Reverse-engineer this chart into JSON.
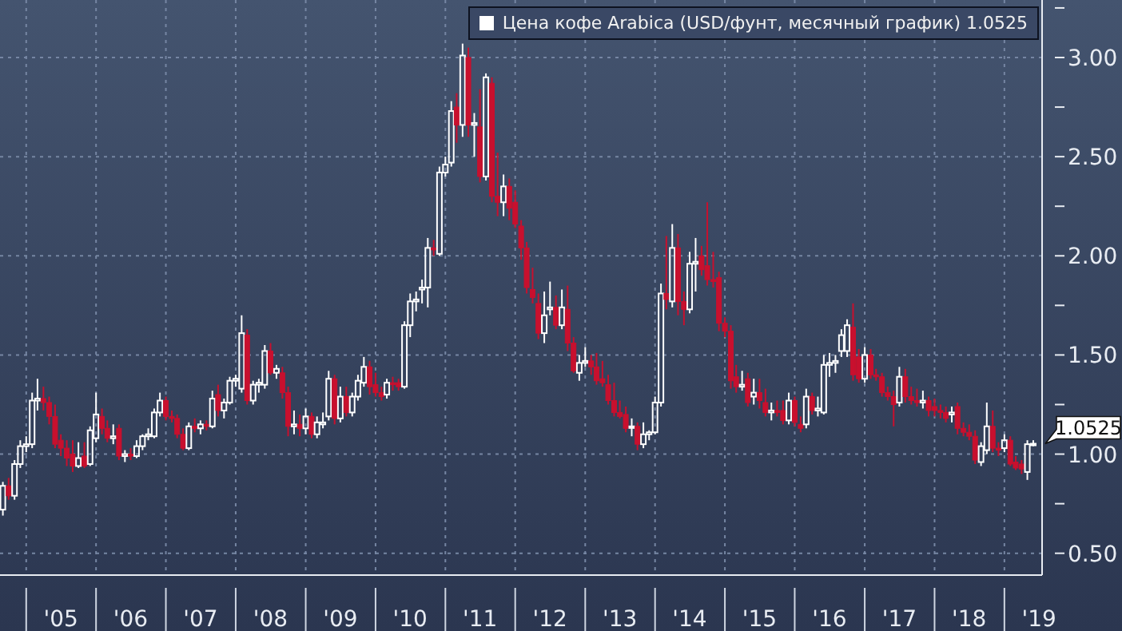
{
  "chart_data": {
    "type": "candlestick",
    "x": [
      "2004-09",
      "2004-10",
      "2004-11",
      "2004-12",
      "2005-01",
      "2005-02",
      "2005-03",
      "2005-04",
      "2005-05",
      "2005-06",
      "2005-07",
      "2005-08",
      "2005-09",
      "2005-10",
      "2005-11",
      "2005-12",
      "2006-01",
      "2006-02",
      "2006-03",
      "2006-04",
      "2006-05",
      "2006-06",
      "2006-07",
      "2006-08",
      "2006-09",
      "2006-10",
      "2006-11",
      "2006-12",
      "2007-01",
      "2007-02",
      "2007-03",
      "2007-04",
      "2007-05",
      "2007-06",
      "2007-07",
      "2007-08",
      "2007-09",
      "2007-10",
      "2007-11",
      "2007-12",
      "2008-01",
      "2008-02",
      "2008-03",
      "2008-04",
      "2008-05",
      "2008-06",
      "2008-07",
      "2008-08",
      "2008-09",
      "2008-10",
      "2008-11",
      "2008-12",
      "2009-01",
      "2009-02",
      "2009-03",
      "2009-04",
      "2009-05",
      "2009-06",
      "2009-07",
      "2009-08",
      "2009-09",
      "2009-10",
      "2009-11",
      "2009-12",
      "2010-01",
      "2010-02",
      "2010-03",
      "2010-04",
      "2010-05",
      "2010-06",
      "2010-07",
      "2010-08",
      "2010-09",
      "2010-10",
      "2010-11",
      "2010-12",
      "2011-01",
      "2011-02",
      "2011-03",
      "2011-04",
      "2011-05",
      "2011-06",
      "2011-07",
      "2011-08",
      "2011-09",
      "2011-10",
      "2011-11",
      "2011-12",
      "2012-01",
      "2012-02",
      "2012-03",
      "2012-04",
      "2012-05",
      "2012-06",
      "2012-07",
      "2012-08",
      "2012-09",
      "2012-10",
      "2012-11",
      "2012-12",
      "2013-01",
      "2013-02",
      "2013-03",
      "2013-04",
      "2013-05",
      "2013-06",
      "2013-07",
      "2013-08",
      "2013-09",
      "2013-10",
      "2013-11",
      "2013-12",
      "2014-01",
      "2014-02",
      "2014-03",
      "2014-04",
      "2014-05",
      "2014-06",
      "2014-07",
      "2014-08",
      "2014-09",
      "2014-10",
      "2014-11",
      "2014-12",
      "2015-01",
      "2015-02",
      "2015-03",
      "2015-04",
      "2015-05",
      "2015-06",
      "2015-07",
      "2015-08",
      "2015-09",
      "2015-10",
      "2015-11",
      "2015-12",
      "2016-01",
      "2016-02",
      "2016-03",
      "2016-04",
      "2016-05",
      "2016-06",
      "2016-07",
      "2016-08",
      "2016-09",
      "2016-10",
      "2016-11",
      "2016-12",
      "2017-01",
      "2017-02",
      "2017-03",
      "2017-04",
      "2017-05",
      "2017-06",
      "2017-07",
      "2017-08",
      "2017-09",
      "2017-10",
      "2017-11",
      "2017-12",
      "2018-01",
      "2018-02",
      "2018-03",
      "2018-04",
      "2018-05",
      "2018-06",
      "2018-07",
      "2018-08",
      "2018-09",
      "2018-10",
      "2018-11",
      "2018-12",
      "2019-01",
      "2019-02",
      "2019-03",
      "2019-04",
      "2019-05",
      "2019-06"
    ],
    "series": [
      {
        "name": "Цена кофе Arabica (USD/фунт, месячный график) 1.0525",
        "color": "#ffffff",
        "ohlc": [
          [
            0.72,
            0.86,
            0.69,
            0.84
          ],
          [
            0.84,
            0.88,
            0.77,
            0.79
          ],
          [
            0.79,
            0.97,
            0.77,
            0.95
          ],
          [
            0.95,
            1.07,
            0.93,
            1.04
          ],
          [
            1.04,
            1.09,
            1.01,
            1.05
          ],
          [
            1.05,
            1.31,
            1.03,
            1.27
          ],
          [
            1.27,
            1.38,
            1.22,
            1.28
          ],
          [
            1.28,
            1.34,
            1.22,
            1.26
          ],
          [
            1.26,
            1.29,
            1.15,
            1.19
          ],
          [
            1.19,
            1.25,
            1.03,
            1.05
          ],
          [
            1.07,
            1.1,
            0.99,
            1.03
          ],
          [
            1.03,
            1.07,
            0.94,
            0.98
          ],
          [
            1.0,
            1.07,
            0.91,
            0.94
          ],
          [
            0.94,
            1.06,
            0.93,
            0.98
          ],
          [
            0.99,
            1.06,
            0.93,
            0.94
          ],
          [
            0.95,
            1.14,
            0.94,
            1.12
          ],
          [
            1.08,
            1.31,
            1.06,
            1.2
          ],
          [
            1.19,
            1.23,
            1.1,
            1.13
          ],
          [
            1.13,
            1.17,
            1.06,
            1.08
          ],
          [
            1.08,
            1.15,
            1.05,
            1.09
          ],
          [
            1.13,
            1.15,
            0.97,
            0.99
          ],
          [
            0.99,
            1.02,
            0.96,
            1.0
          ],
          [
            1.0,
            1.03,
            0.97,
            0.99
          ],
          [
            0.99,
            1.07,
            0.98,
            1.04
          ],
          [
            1.04,
            1.1,
            1.02,
            1.09
          ],
          [
            1.09,
            1.13,
            1.07,
            1.1
          ],
          [
            1.09,
            1.23,
            1.08,
            1.21
          ],
          [
            1.21,
            1.31,
            1.19,
            1.27
          ],
          [
            1.27,
            1.29,
            1.17,
            1.19
          ],
          [
            1.19,
            1.22,
            1.16,
            1.18
          ],
          [
            1.18,
            1.2,
            1.08,
            1.1
          ],
          [
            1.1,
            1.13,
            1.02,
            1.03
          ],
          [
            1.03,
            1.16,
            1.02,
            1.14
          ],
          [
            1.14,
            1.18,
            1.11,
            1.13
          ],
          [
            1.13,
            1.17,
            1.1,
            1.15
          ],
          [
            1.15,
            1.17,
            1.12,
            1.14
          ],
          [
            1.14,
            1.32,
            1.13,
            1.28
          ],
          [
            1.3,
            1.35,
            1.19,
            1.22
          ],
          [
            1.22,
            1.28,
            1.18,
            1.26
          ],
          [
            1.26,
            1.39,
            1.25,
            1.37
          ],
          [
            1.37,
            1.4,
            1.34,
            1.38
          ],
          [
            1.33,
            1.7,
            1.31,
            1.61
          ],
          [
            1.6,
            1.63,
            1.25,
            1.27
          ],
          [
            1.27,
            1.37,
            1.25,
            1.35
          ],
          [
            1.35,
            1.38,
            1.31,
            1.36
          ],
          [
            1.35,
            1.55,
            1.33,
            1.52
          ],
          [
            1.52,
            1.56,
            1.4,
            1.41
          ],
          [
            1.41,
            1.45,
            1.38,
            1.43
          ],
          [
            1.41,
            1.44,
            1.28,
            1.31
          ],
          [
            1.31,
            1.34,
            1.09,
            1.14
          ],
          [
            1.14,
            1.22,
            1.1,
            1.15
          ],
          [
            1.15,
            1.2,
            1.09,
            1.13
          ],
          [
            1.13,
            1.23,
            1.1,
            1.19
          ],
          [
            1.19,
            1.21,
            1.08,
            1.1
          ],
          [
            1.1,
            1.19,
            1.08,
            1.16
          ],
          [
            1.15,
            1.21,
            1.13,
            1.16
          ],
          [
            1.19,
            1.42,
            1.17,
            1.38
          ],
          [
            1.38,
            1.4,
            1.15,
            1.18
          ],
          [
            1.18,
            1.34,
            1.16,
            1.29
          ],
          [
            1.29,
            1.34,
            1.19,
            1.21
          ],
          [
            1.21,
            1.31,
            1.19,
            1.29
          ],
          [
            1.29,
            1.4,
            1.27,
            1.37
          ],
          [
            1.36,
            1.49,
            1.34,
            1.44
          ],
          [
            1.44,
            1.47,
            1.3,
            1.34
          ],
          [
            1.35,
            1.41,
            1.29,
            1.31
          ],
          [
            1.31,
            1.34,
            1.27,
            1.29
          ],
          [
            1.3,
            1.38,
            1.28,
            1.36
          ],
          [
            1.36,
            1.39,
            1.32,
            1.35
          ],
          [
            1.36,
            1.38,
            1.32,
            1.34
          ],
          [
            1.34,
            1.67,
            1.33,
            1.65
          ],
          [
            1.65,
            1.81,
            1.59,
            1.77
          ],
          [
            1.77,
            1.82,
            1.72,
            1.78
          ],
          [
            1.83,
            1.88,
            1.76,
            1.84
          ],
          [
            1.84,
            2.09,
            1.74,
            2.04
          ],
          [
            2.04,
            2.08,
            2.0,
            2.03
          ],
          [
            2.01,
            2.45,
            2.0,
            2.42
          ],
          [
            2.42,
            2.5,
            2.4,
            2.46
          ],
          [
            2.47,
            2.78,
            2.45,
            2.73
          ],
          [
            2.75,
            2.82,
            2.57,
            2.66
          ],
          [
            2.66,
            3.07,
            2.6,
            3.01
          ],
          [
            3.0,
            3.05,
            2.6,
            2.66
          ],
          [
            2.66,
            2.72,
            2.5,
            2.67
          ],
          [
            2.65,
            2.84,
            2.37,
            2.4
          ],
          [
            2.4,
            2.92,
            2.38,
            2.9
          ],
          [
            2.87,
            2.9,
            2.27,
            2.3
          ],
          [
            2.3,
            2.52,
            2.2,
            2.27
          ],
          [
            2.27,
            2.41,
            2.2,
            2.35
          ],
          [
            2.35,
            2.39,
            2.18,
            2.24
          ],
          [
            2.27,
            2.33,
            2.14,
            2.16
          ],
          [
            2.15,
            2.18,
            1.98,
            2.04
          ],
          [
            2.04,
            2.07,
            1.81,
            1.84
          ],
          [
            1.83,
            1.94,
            1.76,
            1.79
          ],
          [
            1.76,
            1.81,
            1.58,
            1.61
          ],
          [
            1.61,
            1.82,
            1.56,
            1.7
          ],
          [
            1.73,
            1.87,
            1.7,
            1.74
          ],
          [
            1.74,
            1.8,
            1.63,
            1.65
          ],
          [
            1.65,
            1.83,
            1.63,
            1.74
          ],
          [
            1.73,
            1.85,
            1.52,
            1.56
          ],
          [
            1.56,
            1.59,
            1.41,
            1.42
          ],
          [
            1.41,
            1.5,
            1.37,
            1.46
          ],
          [
            1.46,
            1.54,
            1.44,
            1.47
          ],
          [
            1.47,
            1.5,
            1.4,
            1.44
          ],
          [
            1.44,
            1.51,
            1.35,
            1.37
          ],
          [
            1.38,
            1.47,
            1.34,
            1.36
          ],
          [
            1.35,
            1.4,
            1.25,
            1.27
          ],
          [
            1.27,
            1.36,
            1.19,
            1.21
          ],
          [
            1.21,
            1.27,
            1.18,
            1.19
          ],
          [
            1.2,
            1.24,
            1.11,
            1.13
          ],
          [
            1.14,
            1.18,
            1.09,
            1.14
          ],
          [
            1.14,
            1.16,
            1.02,
            1.05
          ],
          [
            1.05,
            1.16,
            1.03,
            1.1
          ],
          [
            1.1,
            1.12,
            1.07,
            1.11
          ],
          [
            1.11,
            1.29,
            1.1,
            1.26
          ],
          [
            1.26,
            1.86,
            1.24,
            1.81
          ],
          [
            1.81,
            2.1,
            1.73,
            1.78
          ],
          [
            1.77,
            2.16,
            1.74,
            2.04
          ],
          [
            2.04,
            2.11,
            1.7,
            1.77
          ],
          [
            1.77,
            1.82,
            1.65,
            1.73
          ],
          [
            1.73,
            2.02,
            1.71,
            1.96
          ],
          [
            1.96,
            2.09,
            1.82,
            1.97
          ],
          [
            2.0,
            2.05,
            1.9,
            1.93
          ],
          [
            1.95,
            2.27,
            1.85,
            1.88
          ],
          [
            1.88,
            2.02,
            1.84,
            1.87
          ],
          [
            1.89,
            1.92,
            1.62,
            1.66
          ],
          [
            1.66,
            1.69,
            1.59,
            1.62
          ],
          [
            1.62,
            1.65,
            1.33,
            1.37
          ],
          [
            1.39,
            1.45,
            1.31,
            1.34
          ],
          [
            1.34,
            1.42,
            1.32,
            1.35
          ],
          [
            1.38,
            1.41,
            1.24,
            1.26
          ],
          [
            1.29,
            1.38,
            1.25,
            1.31
          ],
          [
            1.31,
            1.38,
            1.23,
            1.27
          ],
          [
            1.26,
            1.33,
            1.19,
            1.21
          ],
          [
            1.21,
            1.26,
            1.17,
            1.22
          ],
          [
            1.22,
            1.27,
            1.19,
            1.21
          ],
          [
            1.22,
            1.27,
            1.15,
            1.17
          ],
          [
            1.17,
            1.31,
            1.15,
            1.27
          ],
          [
            1.27,
            1.29,
            1.14,
            1.16
          ],
          [
            1.15,
            1.19,
            1.11,
            1.13
          ],
          [
            1.15,
            1.33,
            1.13,
            1.29
          ],
          [
            1.29,
            1.31,
            1.2,
            1.22
          ],
          [
            1.22,
            1.29,
            1.19,
            1.23
          ],
          [
            1.21,
            1.5,
            1.2,
            1.45
          ],
          [
            1.45,
            1.51,
            1.39,
            1.46
          ],
          [
            1.46,
            1.5,
            1.41,
            1.47
          ],
          [
            1.52,
            1.63,
            1.49,
            1.6
          ],
          [
            1.52,
            1.68,
            1.49,
            1.65
          ],
          [
            1.64,
            1.76,
            1.37,
            1.4
          ],
          [
            1.49,
            1.53,
            1.36,
            1.38
          ],
          [
            1.38,
            1.54,
            1.36,
            1.5
          ],
          [
            1.5,
            1.53,
            1.38,
            1.4
          ],
          [
            1.4,
            1.43,
            1.37,
            1.39
          ],
          [
            1.39,
            1.41,
            1.29,
            1.31
          ],
          [
            1.31,
            1.34,
            1.27,
            1.29
          ],
          [
            1.29,
            1.32,
            1.14,
            1.25
          ],
          [
            1.26,
            1.44,
            1.24,
            1.39
          ],
          [
            1.39,
            1.43,
            1.26,
            1.29
          ],
          [
            1.29,
            1.34,
            1.25,
            1.27
          ],
          [
            1.27,
            1.33,
            1.24,
            1.26
          ],
          [
            1.26,
            1.32,
            1.23,
            1.27
          ],
          [
            1.27,
            1.29,
            1.19,
            1.22
          ],
          [
            1.24,
            1.28,
            1.19,
            1.22
          ],
          [
            1.22,
            1.25,
            1.18,
            1.21
          ],
          [
            1.21,
            1.24,
            1.16,
            1.18
          ],
          [
            1.2,
            1.24,
            1.16,
            1.21
          ],
          [
            1.24,
            1.26,
            1.1,
            1.13
          ],
          [
            1.13,
            1.16,
            1.09,
            1.11
          ],
          [
            1.11,
            1.15,
            1.07,
            1.09
          ],
          [
            1.09,
            1.12,
            0.95,
            0.97
          ],
          [
            0.96,
            1.06,
            0.94,
            1.04
          ],
          [
            1.02,
            1.26,
            1.0,
            1.14
          ],
          [
            1.14,
            1.22,
            1.01,
            1.03
          ],
          [
            1.03,
            1.06,
            0.99,
            1.02
          ],
          [
            1.03,
            1.1,
            1.01,
            1.07
          ],
          [
            1.07,
            1.09,
            0.94,
            0.95
          ],
          [
            0.96,
            0.99,
            0.92,
            0.93
          ],
          [
            0.95,
            0.97,
            0.9,
            0.925
          ],
          [
            0.91,
            1.07,
            0.87,
            1.05
          ],
          [
            1.05,
            1.07,
            1.04,
            1.0525
          ]
        ],
        "colors": [
          "#ffffff",
          "#c8102e",
          "#ffffff",
          "#ffffff",
          "#ffffff",
          "#ffffff",
          "#ffffff",
          "#c8102e",
          "#c8102e",
          "#c8102e",
          "#c8102e",
          "#c8102e",
          "#c8102e",
          "#ffffff",
          "#c8102e",
          "#ffffff",
          "#ffffff",
          "#c8102e",
          "#c8102e",
          "#ffffff",
          "#c8102e",
          "#ffffff",
          "#c8102e",
          "#ffffff",
          "#ffffff",
          "#ffffff",
          "#ffffff",
          "#ffffff",
          "#c8102e",
          "#c8102e",
          "#c8102e",
          "#c8102e",
          "#ffffff",
          "#c8102e",
          "#ffffff",
          "#c8102e",
          "#ffffff",
          "#c8102e",
          "#ffffff",
          "#ffffff",
          "#ffffff",
          "#ffffff",
          "#c8102e",
          "#ffffff",
          "#ffffff",
          "#ffffff",
          "#c8102e",
          "#ffffff",
          "#c8102e",
          "#c8102e",
          "#ffffff",
          "#c8102e",
          "#ffffff",
          "#c8102e",
          "#ffffff",
          "#ffffff",
          "#ffffff",
          "#c8102e",
          "#ffffff",
          "#c8102e",
          "#ffffff",
          "#ffffff",
          "#ffffff",
          "#c8102e",
          "#c8102e",
          "#c8102e",
          "#ffffff",
          "#c8102e",
          "#c8102e",
          "#ffffff",
          "#ffffff",
          "#ffffff",
          "#ffffff",
          "#ffffff",
          "#c8102e",
          "#ffffff",
          "#ffffff",
          "#ffffff",
          "#c8102e",
          "#ffffff",
          "#c8102e",
          "#ffffff",
          "#c8102e",
          "#ffffff",
          "#c8102e",
          "#c8102e",
          "#ffffff",
          "#c8102e",
          "#c8102e",
          "#c8102e",
          "#c8102e",
          "#c8102e",
          "#c8102e",
          "#ffffff",
          "#ffffff",
          "#c8102e",
          "#ffffff",
          "#c8102e",
          "#c8102e",
          "#ffffff",
          "#ffffff",
          "#c8102e",
          "#c8102e",
          "#c8102e",
          "#c8102e",
          "#c8102e",
          "#c8102e",
          "#c8102e",
          "#ffffff",
          "#c8102e",
          "#ffffff",
          "#ffffff",
          "#ffffff",
          "#ffffff",
          "#c8102e",
          "#ffffff",
          "#c8102e",
          "#c8102e",
          "#ffffff",
          "#ffffff",
          "#c8102e",
          "#c8102e",
          "#c8102e",
          "#c8102e",
          "#c8102e",
          "#c8102e",
          "#c8102e",
          "#ffffff",
          "#c8102e",
          "#ffffff",
          "#c8102e",
          "#c8102e",
          "#ffffff",
          "#c8102e",
          "#c8102e",
          "#ffffff",
          "#c8102e",
          "#c8102e",
          "#ffffff",
          "#c8102e",
          "#ffffff",
          "#ffffff",
          "#ffffff",
          "#ffffff",
          "#ffffff",
          "#ffffff",
          "#c8102e",
          "#c8102e",
          "#ffffff",
          "#c8102e",
          "#c8102e",
          "#c8102e",
          "#c8102e",
          "#c8102e",
          "#ffffff",
          "#c8102e",
          "#c8102e",
          "#c8102e",
          "#ffffff",
          "#c8102e",
          "#c8102e",
          "#c8102e",
          "#c8102e",
          "#ffffff",
          "#c8102e",
          "#c8102e",
          "#c8102e",
          "#c8102e",
          "#ffffff",
          "#ffffff",
          "#c8102e",
          "#c8102e",
          "#ffffff",
          "#c8102e",
          "#c8102e",
          "#c8102e",
          "#ffffff",
          "#ffffff"
        ]
      }
    ],
    "xlim": [
      "2004-08-17",
      "2019-07-17"
    ],
    "xticks": [
      {
        "value": "2005-01-01",
        "label": null
      },
      {
        "value": "2005-07-01",
        "label": "'05"
      },
      {
        "value": "2006-01-01",
        "label": null
      },
      {
        "value": "2006-07-01",
        "label": "'06"
      },
      {
        "value": "2007-01-01",
        "label": null
      },
      {
        "value": "2007-07-01",
        "label": "'07"
      },
      {
        "value": "2008-01-01",
        "label": null
      },
      {
        "value": "2008-07-01",
        "label": "'08"
      },
      {
        "value": "2009-01-01",
        "label": null
      },
      {
        "value": "2009-07-01",
        "label": "'09"
      },
      {
        "value": "2010-01-01",
        "label": null
      },
      {
        "value": "2010-07-01",
        "label": "'10"
      },
      {
        "value": "2011-01-01",
        "label": null
      },
      {
        "value": "2011-07-01",
        "label": "'11"
      },
      {
        "value": "2012-01-01",
        "label": null
      },
      {
        "value": "2012-07-01",
        "label": "'12"
      },
      {
        "value": "2013-01-01",
        "label": null
      },
      {
        "value": "2013-07-01",
        "label": "'13"
      },
      {
        "value": "2014-01-01",
        "label": null
      },
      {
        "value": "2014-07-01",
        "label": "'14"
      },
      {
        "value": "2015-01-01",
        "label": null
      },
      {
        "value": "2015-07-01",
        "label": "'15"
      },
      {
        "value": "2016-01-01",
        "label": null
      },
      {
        "value": "2016-07-01",
        "label": "'16"
      },
      {
        "value": "2017-01-01",
        "label": null
      },
      {
        "value": "2017-07-01",
        "label": "'17"
      },
      {
        "value": "2018-01-01",
        "label": null
      },
      {
        "value": "2018-07-01",
        "label": "'18"
      },
      {
        "value": "2019-01-01",
        "label": null
      },
      {
        "value": "2019-07-01",
        "label": "'19"
      }
    ],
    "ylim": [
      0.39,
      3.29
    ],
    "yticks": [
      {
        "value": 0.5,
        "label": "0.50"
      },
      {
        "value": 0.75,
        "label": null
      },
      {
        "value": 1.0,
        "label": "1.00"
      },
      {
        "value": 1.25,
        "label": null
      },
      {
        "value": 1.5,
        "label": "1.50"
      },
      {
        "value": 1.75,
        "label": null
      },
      {
        "value": 2.0,
        "label": "2.00"
      },
      {
        "value": 2.25,
        "label": null
      },
      {
        "value": 2.5,
        "label": "2.50"
      },
      {
        "value": 2.75,
        "label": null
      },
      {
        "value": 3.0,
        "label": "3.00"
      },
      {
        "value": 3.25,
        "label": null
      }
    ],
    "annotations": [
      "1.0525"
    ],
    "grid": true,
    "legend": "top right"
  }
}
